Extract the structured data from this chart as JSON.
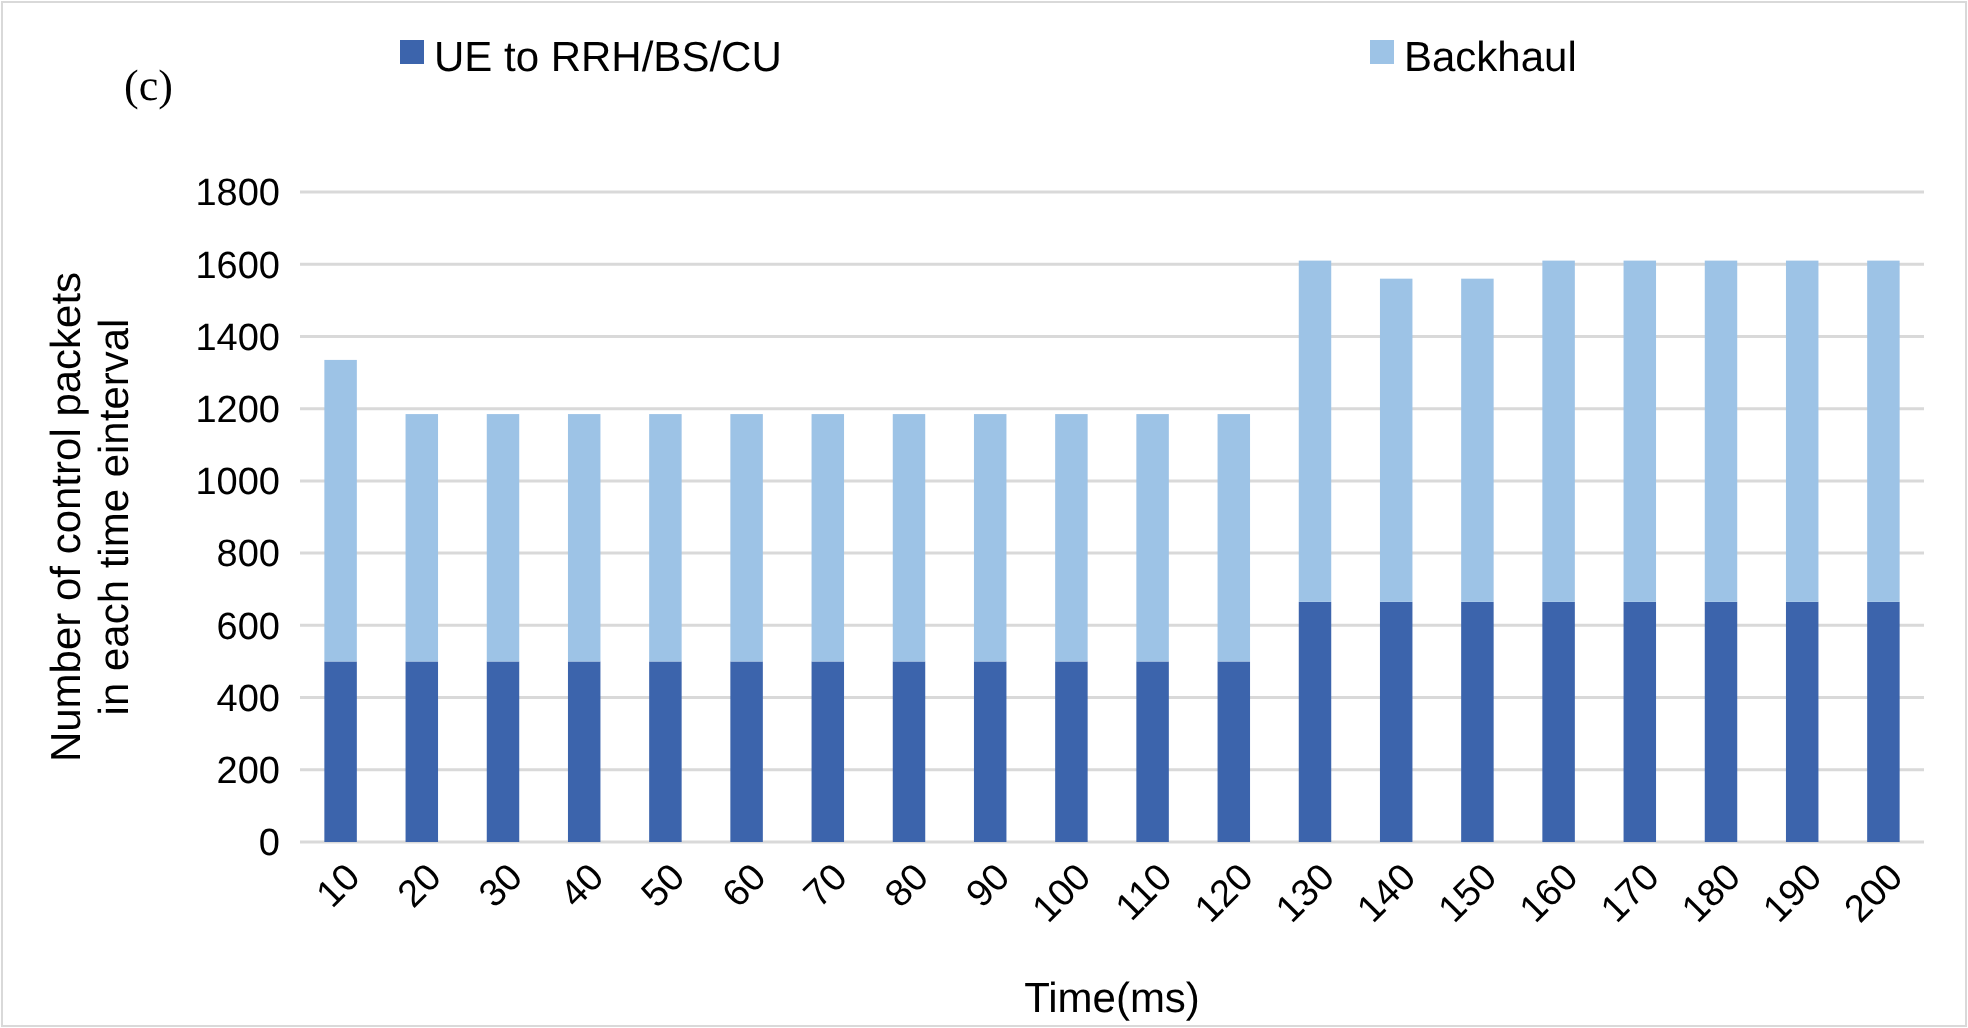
{
  "chart_data": {
    "type": "bar",
    "stacked": true,
    "xlabel": "Time(ms)",
    "ylabel": "Number of control packets in each time einterval",
    "annotations": [
      "(c)"
    ],
    "categories": [
      "10",
      "20",
      "30",
      "40",
      "50",
      "60",
      "70",
      "80",
      "90",
      "100",
      "110",
      "120",
      "130",
      "140",
      "150",
      "160",
      "170",
      "180",
      "190",
      "200"
    ],
    "series": [
      {
        "name": "UE to RRH/BS/CU",
        "color": "#3c64ac",
        "values": [
          500,
          500,
          500,
          500,
          500,
          500,
          500,
          500,
          500,
          500,
          500,
          500,
          665,
          665,
          665,
          665,
          665,
          665,
          665,
          665
        ]
      },
      {
        "name": "Backhaul",
        "color": "#9dc3e6",
        "values": [
          835,
          685,
          685,
          685,
          685,
          685,
          685,
          685,
          685,
          685,
          685,
          685,
          945,
          895,
          895,
          945,
          945,
          945,
          945,
          945
        ]
      }
    ],
    "ylim": [
      0,
      1800
    ],
    "yticks": [
      0,
      200,
      400,
      600,
      800,
      1000,
      1200,
      1400,
      1600,
      1800
    ],
    "grid": "y",
    "legend": "top"
  }
}
